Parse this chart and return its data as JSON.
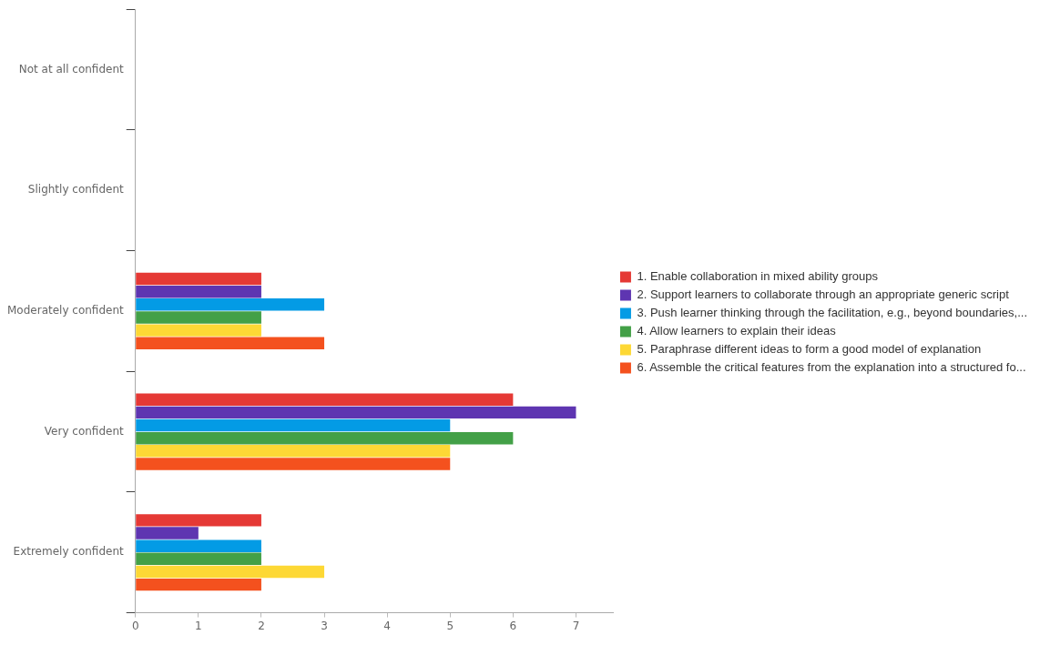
{
  "chart_data": {
    "type": "bar",
    "orientation": "horizontal",
    "categories": [
      "Not at all confident",
      "Slightly confident",
      "Moderately confident",
      "Very confident",
      "Extremely confident"
    ],
    "series": [
      {
        "name": "1. Enable collaboration in mixed ability groups",
        "color": "#e53935",
        "values": [
          0,
          0,
          2,
          6,
          2
        ]
      },
      {
        "name": "2. Support learners to collaborate through an appropriate generic script",
        "color": "#5e35b1",
        "values": [
          0,
          0,
          2,
          7,
          1
        ]
      },
      {
        "name": "3. Push learner thinking through the facilitation, e.g., beyond boundaries,...",
        "color": "#039be5",
        "values": [
          0,
          0,
          3,
          5,
          2
        ]
      },
      {
        "name": "4. Allow learners to explain their ideas",
        "color": "#43a047",
        "values": [
          0,
          0,
          2,
          6,
          2
        ]
      },
      {
        "name": "5. Paraphrase different ideas to form a good model of explanation",
        "color": "#fdd835",
        "values": [
          0,
          0,
          2,
          5,
          3
        ]
      },
      {
        "name": "6. Assemble the critical features from the explanation into a structured fo...",
        "color": "#f4511e",
        "values": [
          0,
          0,
          3,
          5,
          2
        ]
      }
    ],
    "xlim": [
      0,
      7.6
    ],
    "xticks": [
      0,
      1,
      2,
      3,
      4,
      5,
      6,
      7
    ],
    "grid": false,
    "legend": "right"
  }
}
